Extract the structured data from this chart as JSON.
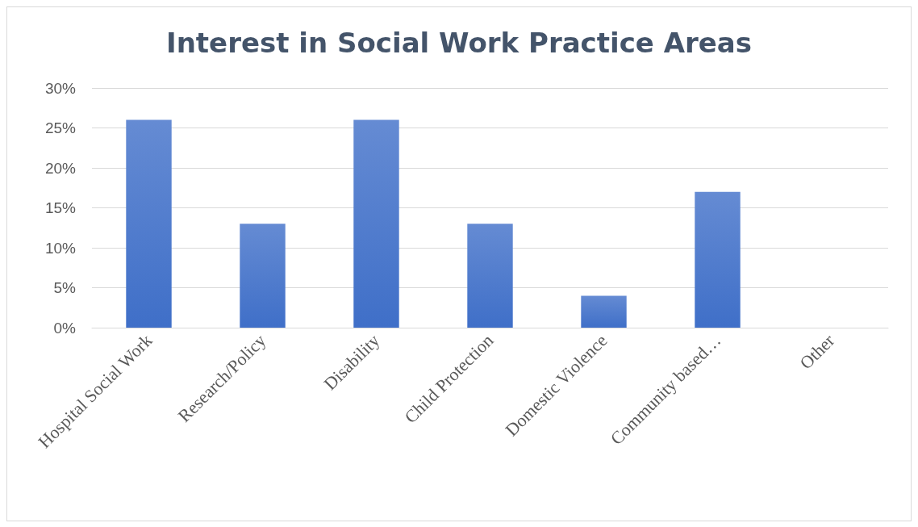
{
  "chart_data": {
    "type": "bar",
    "title": "Interest in Social Work Practice Areas",
    "categories": [
      "Hospital Social Work",
      "Research/Policy",
      "Disability",
      "Child Protection",
      "Domestic Violence",
      "Community based…",
      "Other"
    ],
    "values": [
      26,
      13,
      26,
      13,
      4,
      17,
      0
    ],
    "color": "#3f6fc8",
    "ylim": [
      0,
      30
    ],
    "yticks": [
      {
        "value": 0,
        "label": "0%"
      },
      {
        "value": 5,
        "label": "5%"
      },
      {
        "value": 10,
        "label": "10%"
      },
      {
        "value": 15,
        "label": "15%"
      },
      {
        "value": 20,
        "label": "20%"
      },
      {
        "value": 25,
        "label": "25%"
      },
      {
        "value": 30,
        "label": "30%"
      }
    ],
    "grid": "y"
  }
}
